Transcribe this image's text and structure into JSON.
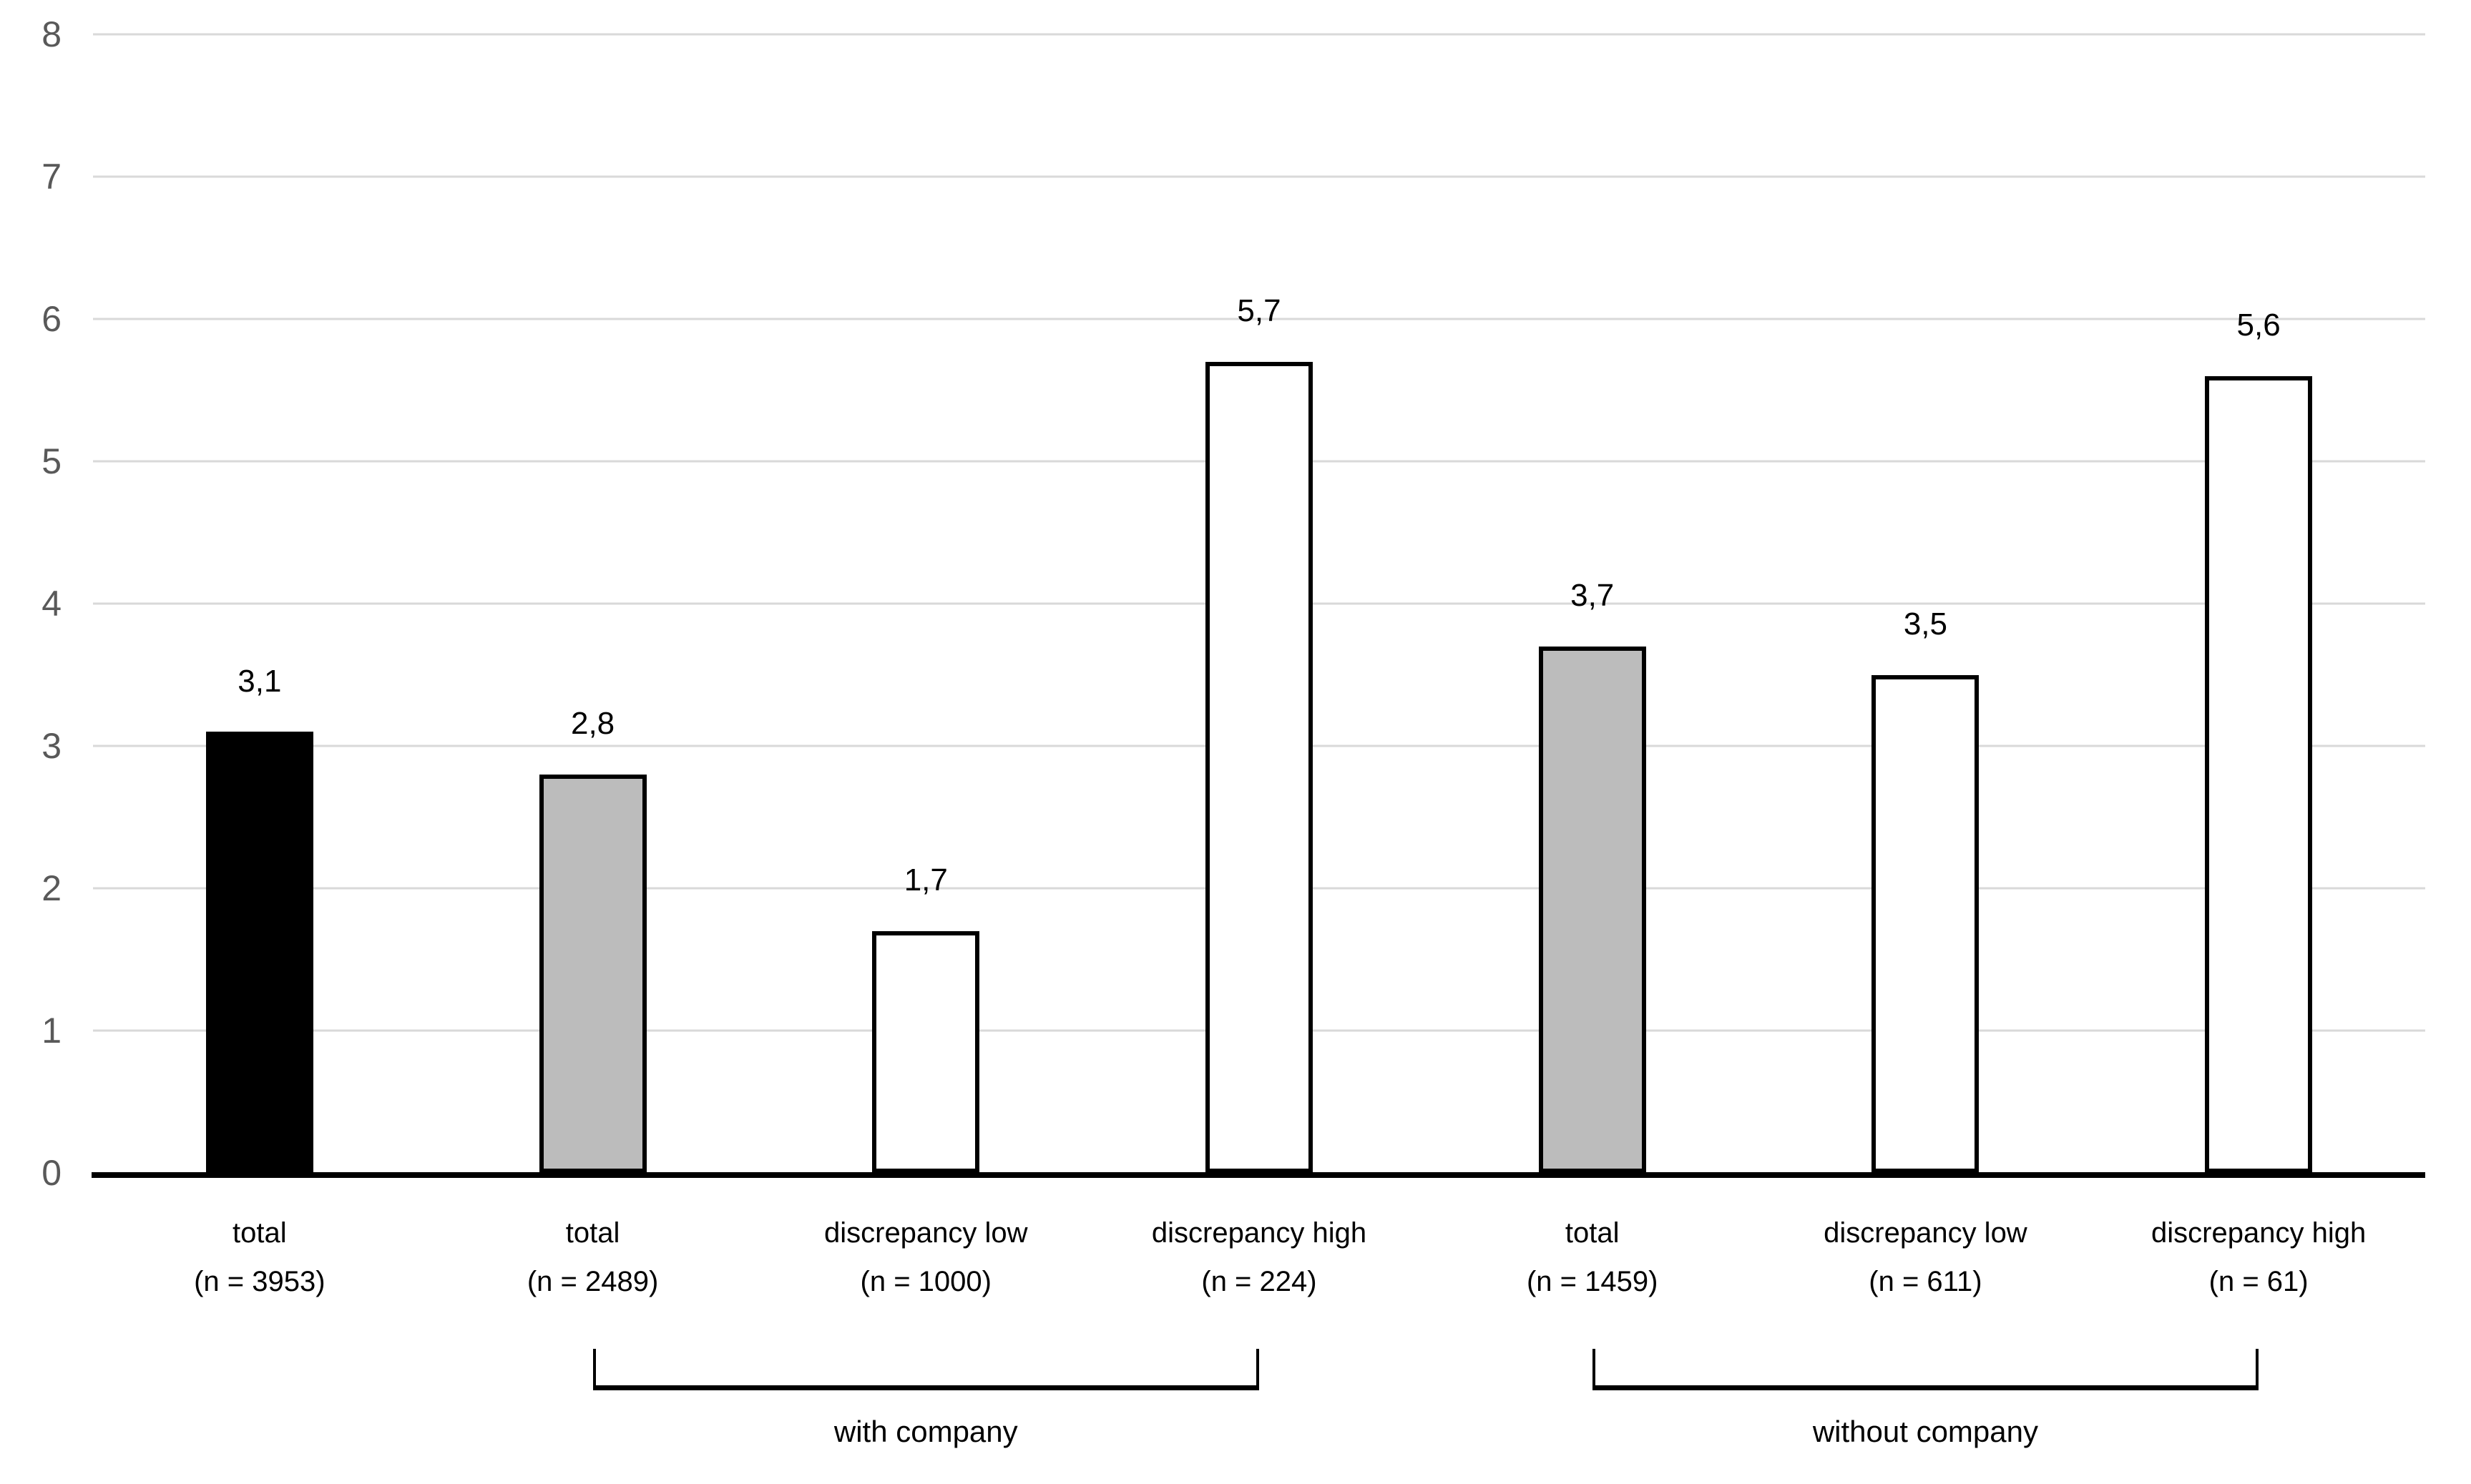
{
  "chart_data": {
    "type": "bar",
    "title": "",
    "xlabel": "",
    "ylabel": "",
    "ylim": [
      0,
      8
    ],
    "yticks": [
      "0",
      "1",
      "2",
      "3",
      "4",
      "5",
      "6",
      "7",
      "8"
    ],
    "grid": true,
    "legend": "none",
    "decimal_style": "comma",
    "bars": [
      {
        "category_line1": "total",
        "category_line2": "(n = 3953)",
        "n": 3953,
        "value": 3.1,
        "value_label": "3,1",
        "fill": "black"
      },
      {
        "category_line1": "total",
        "category_line2": "(n = 2489)",
        "n": 2489,
        "value": 2.8,
        "value_label": "2,8",
        "fill": "gray"
      },
      {
        "category_line1": "discrepancy low",
        "category_line2": "(n = 1000)",
        "n": 1000,
        "value": 1.7,
        "value_label": "1,7",
        "fill": "white"
      },
      {
        "category_line1": "discrepancy high",
        "category_line2": "(n = 224)",
        "n": 224,
        "value": 5.7,
        "value_label": "5,7",
        "fill": "white"
      },
      {
        "category_line1": "total",
        "category_line2": "(n = 1459)",
        "n": 1459,
        "value": 3.7,
        "value_label": "3,7",
        "fill": "gray"
      },
      {
        "category_line1": "discrepancy low",
        "category_line2": "(n = 611)",
        "n": 611,
        "value": 3.5,
        "value_label": "3,5",
        "fill": "white"
      },
      {
        "category_line1": "discrepancy high",
        "category_line2": "(n = 61)",
        "n": 61,
        "value": 5.6,
        "value_label": "5,6",
        "fill": "white"
      }
    ],
    "groups": [
      {
        "label": "with company",
        "start_index": 1,
        "end_index": 3
      },
      {
        "label": "without company",
        "start_index": 4,
        "end_index": 6
      }
    ],
    "colors": {
      "fills": {
        "black": "#000000",
        "gray": "#bcbcbc",
        "white": "#ffffff"
      },
      "bar_border": "#000000",
      "gridline": "#d9d9d9",
      "axis_line": "#000000",
      "tick_label": "#595959",
      "text": "#000000"
    }
  }
}
